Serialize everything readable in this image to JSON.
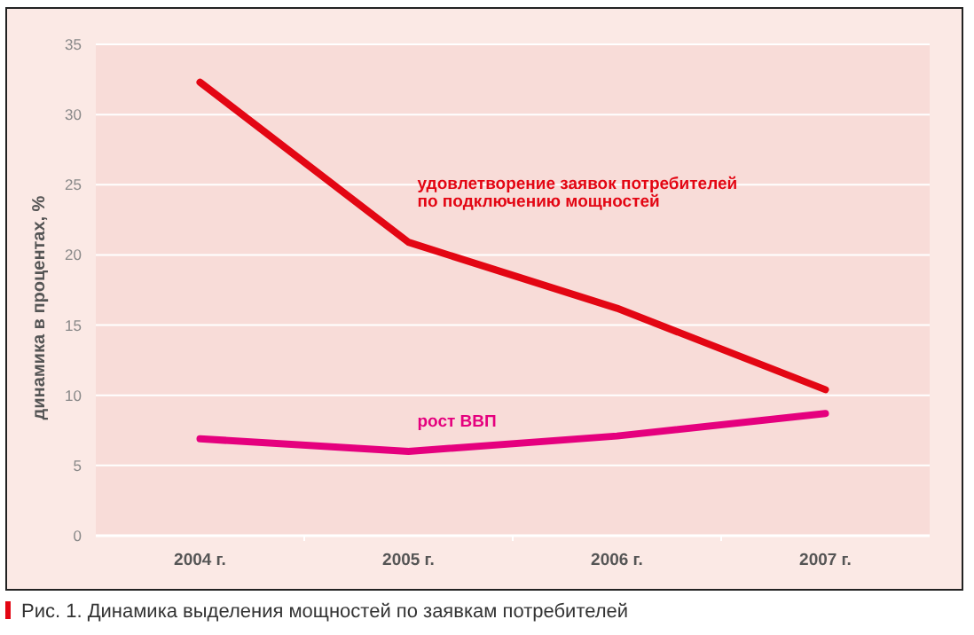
{
  "chart_data": {
    "type": "line",
    "ylabel": "динамика в процентах, %",
    "categories": [
      "2004  г.",
      "2005 г.",
      "2006 г.",
      "2007 г."
    ],
    "series": [
      {
        "name": "удовлетворение заявок потребителей\nпо подключению мощностей",
        "color": "#e30613",
        "values": [
          32.3,
          20.9,
          16.2,
          10.4
        ]
      },
      {
        "name": "рост ВВП",
        "color": "#e5007e",
        "values": [
          6.9,
          6.0,
          7.1,
          8.7
        ]
      }
    ],
    "ylim": [
      0,
      35
    ],
    "yticks": [
      0,
      5,
      10,
      15,
      20,
      25,
      30,
      35
    ],
    "grid": "y",
    "marker": "none",
    "line_style": "solid",
    "annotations": [
      "Рис. 1. Динамика выделения мощностей по заявкам потребителей"
    ]
  }
}
